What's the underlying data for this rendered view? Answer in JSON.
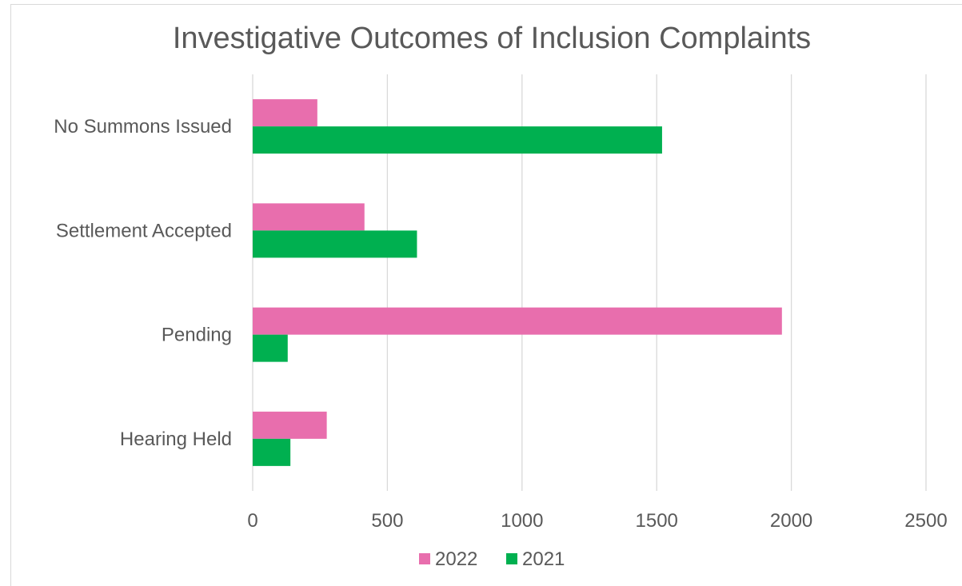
{
  "chart_data": {
    "type": "bar",
    "orientation": "horizontal",
    "title": "Investigative Outcomes of Inclusion Complaints",
    "xlabel": "",
    "ylabel": "",
    "categories": [
      "No Summons Issued",
      "Settlement Accepted",
      "Pending",
      "Hearing Held"
    ],
    "series": [
      {
        "name": "2022",
        "color": "#e86ead",
        "values": [
          240,
          415,
          1965,
          275
        ]
      },
      {
        "name": "2021",
        "color": "#00b050",
        "values": [
          1520,
          610,
          130,
          140
        ]
      }
    ],
    "xlim": [
      0,
      2500
    ],
    "ticks": [
      "0",
      "500",
      "1000",
      "1500",
      "2000",
      "2500"
    ],
    "grid": true,
    "legend": "bottom"
  }
}
